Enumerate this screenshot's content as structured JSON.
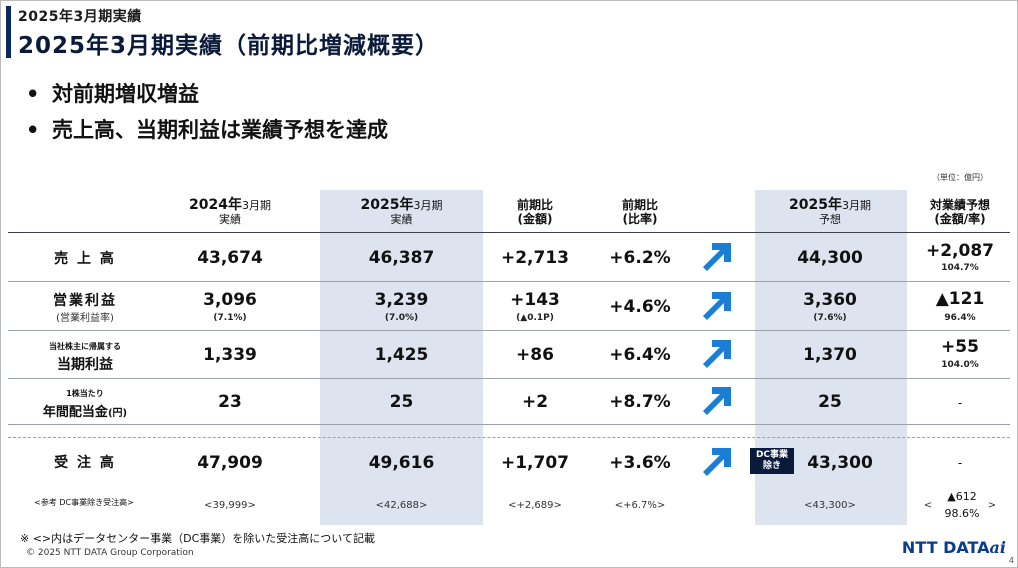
{
  "header": {
    "section": "2025年3月期実績",
    "title": "2025年3月期実績（前期比増減概要）"
  },
  "bullets": [
    "対前期増収増益",
    "売上高、当期利益は業績予想を達成"
  ],
  "unit": "（単位：億円）",
  "columns": {
    "fy2024": {
      "big": "2024年",
      "small": "3月期",
      "sub": "実績"
    },
    "fy2025": {
      "big": "2025年",
      "small": "3月期",
      "sub": "実績"
    },
    "diff_amount": {
      "line1": "前期比",
      "line2": "(金額)"
    },
    "diff_rate": {
      "line1": "前期比",
      "line2": "(比率)"
    },
    "forecast": {
      "big": "2025年",
      "small": "3月期",
      "sub": "予想"
    },
    "vs_forecast": {
      "line1": "対業績予想",
      "line2": "(金額/率)"
    }
  },
  "rows": {
    "sales": {
      "label": "売 上 高",
      "fy2024": "43,674",
      "fy2025": "46,387",
      "diff": "+2,713",
      "rate": "+6.2%",
      "forecast": "44,300",
      "vs": "+2,087",
      "vs_rate": "104.7%"
    },
    "op": {
      "label": "営業利益",
      "sublabel": "(営業利益率)",
      "fy2024": "3,096",
      "fy2024_sub": "(7.1%)",
      "fy2025": "3,239",
      "fy2025_sub": "(7.0%)",
      "diff": "+143",
      "diff_sub": "(▲0.1P)",
      "rate": "+4.6%",
      "forecast": "3,360",
      "forecast_sub": "(7.6%)",
      "vs": "▲121",
      "vs_rate": "96.4%"
    },
    "net": {
      "prelabel": "当社株主に帰属する",
      "label": "当期利益",
      "fy2024": "1,339",
      "fy2025": "1,425",
      "diff": "+86",
      "rate": "+6.4%",
      "forecast": "1,370",
      "vs": "+55",
      "vs_rate": "104.0%"
    },
    "div": {
      "prelabel": "1株当たり",
      "label": "年間配当金",
      "unit": "(円)",
      "fy2024": "23",
      "fy2025": "25",
      "diff": "+2",
      "rate": "+8.7%",
      "forecast": "25",
      "vs": "-"
    },
    "orders": {
      "label": "受 注 高",
      "fy2024": "47,909",
      "fy2025": "49,616",
      "diff": "+1,707",
      "rate": "+3.6%",
      "badge": "DC事業\n除き",
      "forecast": "43,300",
      "vs": "-"
    },
    "orders_ref": {
      "label": "<参考 DC事業除き受注高>",
      "fy2024": "<39,999>",
      "fy2025": "<42,688>",
      "diff": "<+2,689>",
      "rate": "<+6.7%>",
      "forecast": "<43,300>",
      "vs_open": "<",
      "vs": "▲612",
      "vs_rate": "98.6%",
      "vs_close": ">"
    }
  },
  "note": "※ <>内はデータセンター事業（DC事業）を除いた受注高について記載",
  "copyright": "© 2025 NTT DATA Group Corporation",
  "logo": {
    "main": "NTT DATA",
    "suffix": "ai"
  },
  "page": "4",
  "colors": {
    "navy": "#0a2a5c",
    "highlight": "#dde4f0",
    "arrow": "#1a7fd4"
  }
}
